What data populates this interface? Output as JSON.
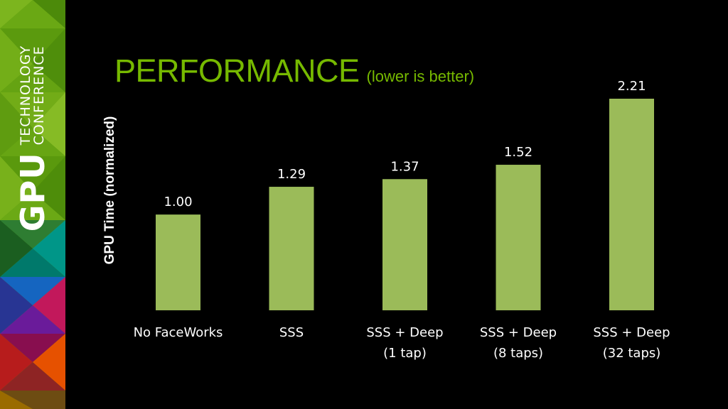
{
  "brand": {
    "gpu": "GPU",
    "line1": "TECHNOLOGY",
    "line2": "CONFERENCE"
  },
  "title": {
    "main": "PERFORMANCE",
    "sub": "(lower is better)"
  },
  "colors": {
    "accent": "#76b900",
    "bar": "#9bbb59",
    "background": "#000000"
  },
  "chart_data": {
    "type": "bar",
    "title": "",
    "xlabel": "",
    "ylabel": "GPU Time (normalized)",
    "categories": [
      [
        "No FaceWorks"
      ],
      [
        "SSS"
      ],
      [
        "SSS + Deep",
        "(1 tap)"
      ],
      [
        "SSS + Deep",
        "(8 taps)"
      ],
      [
        "SSS + Deep",
        "(32 taps)"
      ]
    ],
    "values": [
      1.0,
      1.29,
      1.37,
      1.52,
      2.21
    ],
    "data_labels": [
      "1.00",
      "1.29",
      "1.37",
      "1.52",
      "2.21"
    ],
    "ylim": [
      0,
      2.21
    ],
    "grid": false,
    "legend": "none"
  }
}
